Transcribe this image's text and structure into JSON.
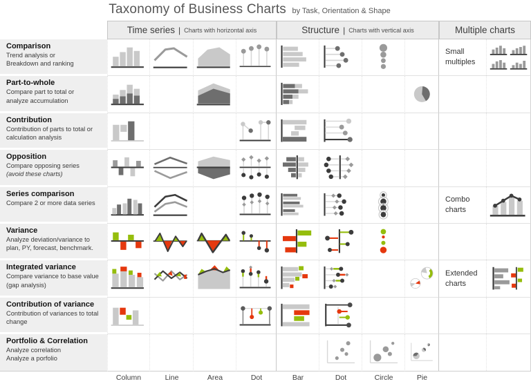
{
  "title": {
    "main": "Taxonomy of Business Charts",
    "sub": "by Task, Orientation & Shape"
  },
  "colors": {
    "green": "#95bd0d",
    "red": "#e5380e",
    "light": "#c9c9c9",
    "stem": "#d7d7d7",
    "mid": "#9a9a9a",
    "dark": "#6e6e6e",
    "axis": "#3c3c3c"
  },
  "groups": [
    {
      "label": "Time series",
      "note": "Charts with horizontal axis"
    },
    {
      "label": "Structure",
      "note": "Charts with vertical axis"
    },
    {
      "label": "Multiple charts",
      "note": ""
    }
  ],
  "footer_labels": [
    "Column",
    "Line",
    "Area",
    "Dot",
    "Bar",
    "Dot",
    "Circle",
    "Pie"
  ],
  "rows": [
    {
      "title": "Comparison",
      "desc": [
        "Trend analysis or",
        "Breakdown and ranking"
      ],
      "italic": [],
      "charts": [
        "column-basic",
        "line-basic",
        "area-basic",
        "dot-lollipop",
        "bar-basic",
        "bar-dot",
        "circle-column",
        ""
      ],
      "multiple": {
        "label": "Small multiples",
        "icon": "small-multiples"
      }
    },
    {
      "title": "Part-to-whole",
      "desc": [
        "Compare part to total or",
        "analyze accumulation"
      ],
      "italic": [],
      "charts": [
        "column-stacked",
        "",
        "area-stacked",
        "",
        "bar-stacked",
        "",
        "",
        "pie-basic"
      ],
      "multiple": null
    },
    {
      "title": "Contribution",
      "desc": [
        "Contribution of parts to total or",
        "calculation analysis"
      ],
      "italic": [],
      "charts": [
        "column-waterfall",
        "",
        "",
        "dot-waterfall",
        "bar-waterfall",
        "bar-dot-waterfall",
        "",
        ""
      ],
      "multiple": null
    },
    {
      "title": "Opposition",
      "desc": [
        "Compare opposing series",
        "(avoid these charts)"
      ],
      "italic": [
        1
      ],
      "charts": [
        "column-opposed",
        "line-opposed",
        "area-opposed",
        "dot-opposed",
        "bar-opposed",
        "bar-dot-opposed",
        "",
        ""
      ],
      "multiple": null
    },
    {
      "title": "Series comparison",
      "desc": [
        "Compare 2 or more data series"
      ],
      "italic": [],
      "charts": [
        "column-grouped",
        "line-multi",
        "",
        "dot-multi",
        "bar-grouped",
        "bar-dot-multi",
        "circle-ringed",
        ""
      ],
      "multiple": {
        "label": "Combo charts",
        "icon": "combo-chart"
      }
    },
    {
      "title": "Variance",
      "desc": [
        "Analyze deviation/variance to",
        "plan, PY, forecast, benchmark."
      ],
      "italic": [],
      "charts": [
        "column-variance",
        "line-variance",
        "area-variance",
        "dot-variance",
        "bar-variance",
        "bar-dot-variance",
        "circle-variance",
        ""
      ],
      "multiple": null
    },
    {
      "title": "Integrated variance",
      "desc": [
        "Compare variance to base value",
        "(gap analysis)"
      ],
      "italic": [],
      "charts": [
        "column-int-variance",
        "line-int-variance",
        "area-int-variance",
        "dot-int-variance",
        "bar-int-variance",
        "bar-dot-int-variance",
        "",
        "pie-extended"
      ],
      "multiple": {
        "label": "Extended charts",
        "icon": "extended-charts"
      }
    },
    {
      "title": "Contribution of variance",
      "desc": [
        "Contribution of variances to total",
        "change"
      ],
      "italic": [],
      "charts": [
        "column-contrib-variance",
        "",
        "",
        "dot-contrib-variance",
        "bar-contrib-variance",
        "bar-dot-contrib-variance",
        "",
        ""
      ],
      "multiple": null
    },
    {
      "title": "Portfolio & Correlation",
      "desc": [
        "Analyze correlation",
        "Analyze a porfolio"
      ],
      "italic": [],
      "charts": [
        "",
        "",
        "",
        "",
        "",
        "scatter-dot",
        "scatter-circle",
        "scatter-pie"
      ],
      "multiple": null
    }
  ]
}
